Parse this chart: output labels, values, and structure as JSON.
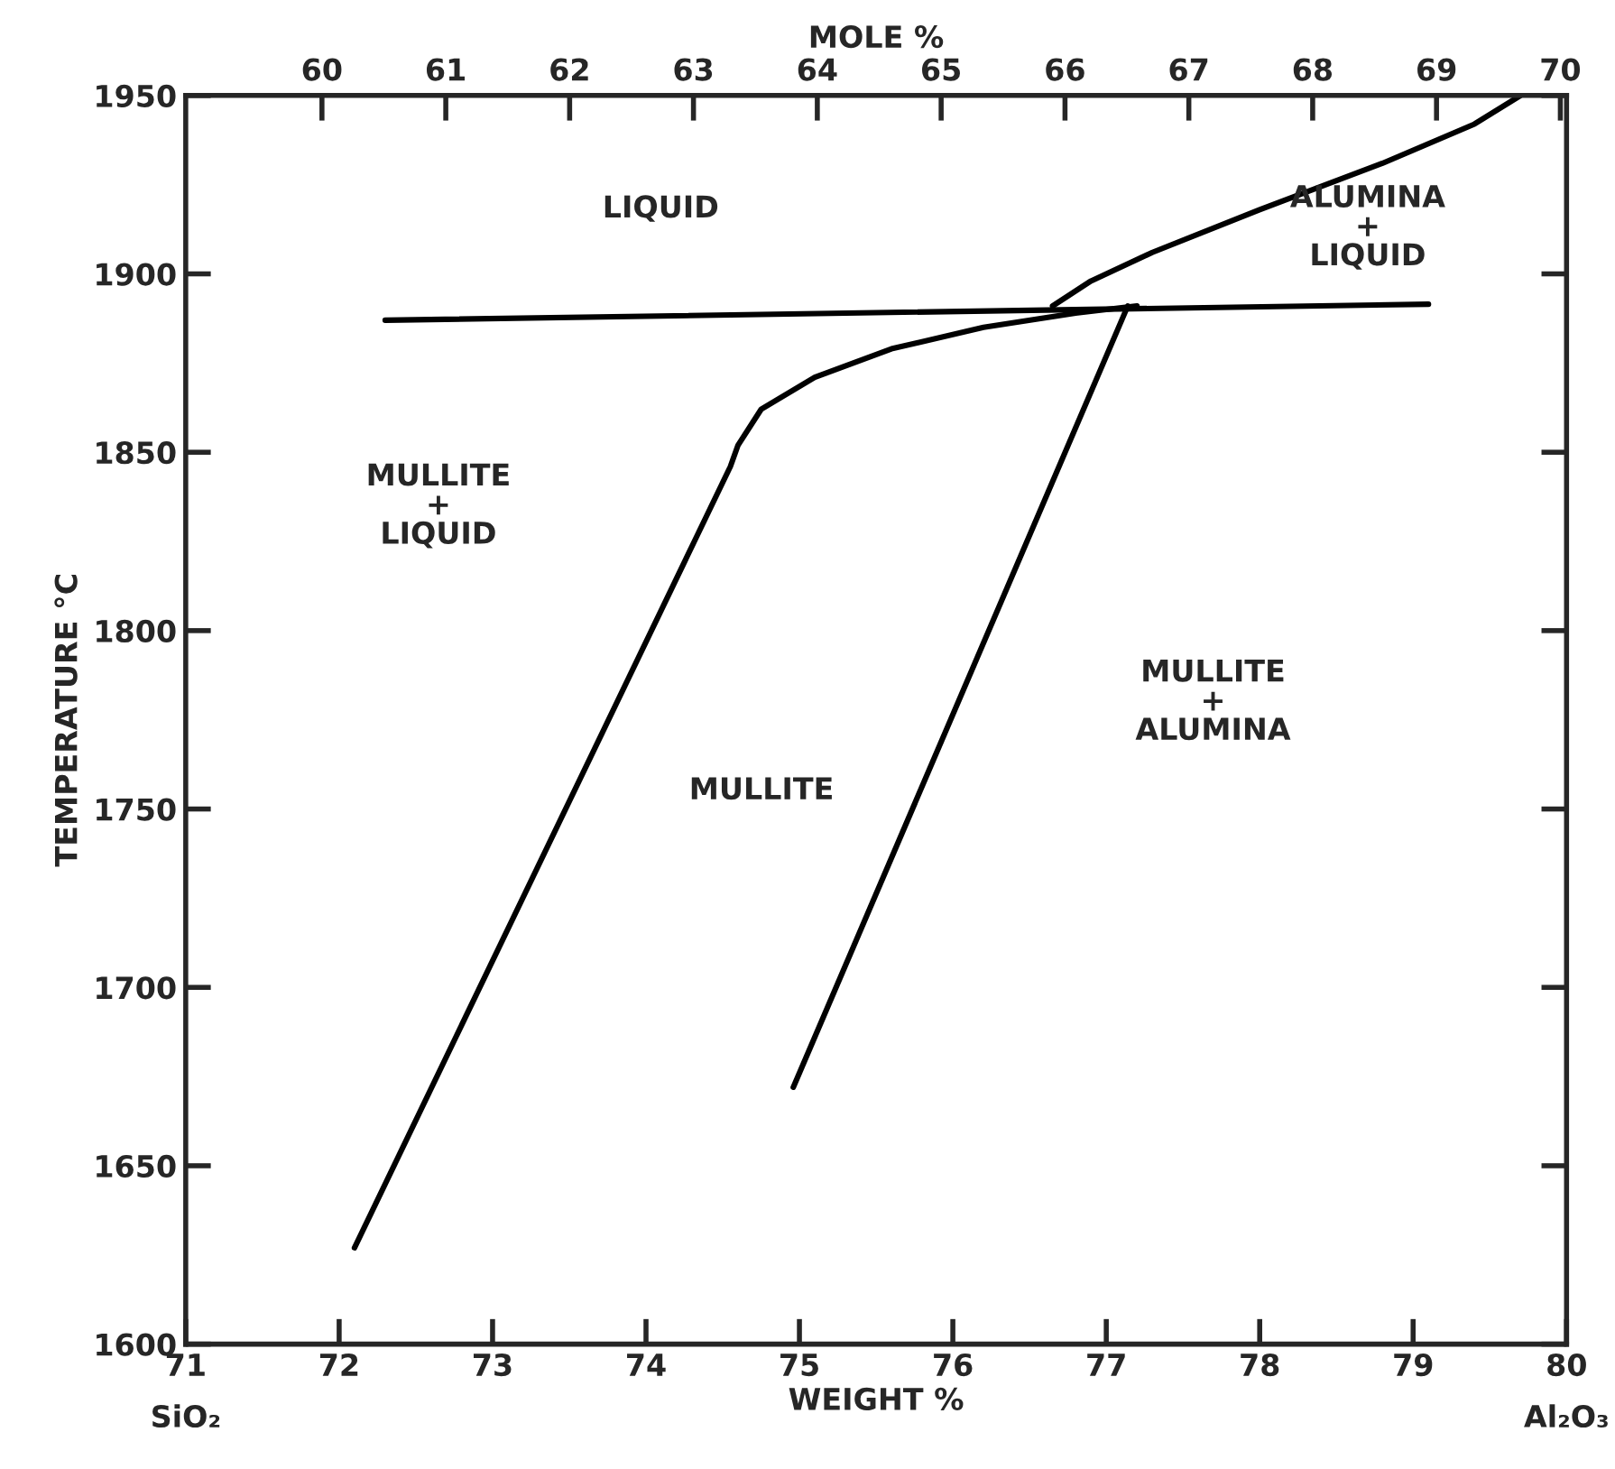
{
  "chart_data": {
    "type": "line",
    "xlabel": "WEIGHT %",
    "ylabel": "TEMPERATURE °C",
    "x2label": "MOLE %",
    "xlim": [
      71,
      80
    ],
    "xticks": [
      71,
      72,
      73,
      74,
      75,
      76,
      77,
      78,
      79,
      80
    ],
    "ylim": [
      1600,
      1950
    ],
    "yticks": [
      1600,
      1650,
      1700,
      1750,
      1800,
      1850,
      1900,
      1950
    ],
    "x2lim": [
      58.9,
      70.05
    ],
    "x2ticks": [
      60,
      61,
      62,
      63,
      64,
      65,
      66,
      67,
      68,
      69,
      70
    ],
    "grid": false,
    "marker": "none",
    "line_style": "solid",
    "series": [
      {
        "color": "#000000",
        "x": [
          72.1,
          74.55,
          74.6,
          74.75,
          75.1,
          75.6,
          76.2,
          76.8,
          77.2
        ],
        "values": [
          1627,
          1846,
          1852,
          1862,
          1871,
          1879,
          1885,
          1889,
          1891
        ]
      },
      {
        "color": "#000000",
        "x": [
          74.96,
          77.14
        ],
        "values": [
          1672,
          1891
        ]
      },
      {
        "color": "#000000",
        "x": [
          72.3,
          79.1
        ],
        "values": [
          1887,
          1891.5
        ]
      },
      {
        "color": "#000000",
        "x": [
          76.65,
          76.9,
          77.3,
          78.0,
          78.8,
          79.4,
          79.7
        ],
        "values": [
          1891,
          1898,
          1906,
          1918,
          1931,
          1942,
          1950
        ]
      }
    ],
    "annotations": [
      "SiO₂",
      "Al₂O₃",
      "LIQUID",
      "MULLITE\n+\nLIQUID",
      "ALUMINA\n+\nLIQUID",
      "MULLITE",
      "MULLITE\n+\nALUMINA"
    ]
  }
}
